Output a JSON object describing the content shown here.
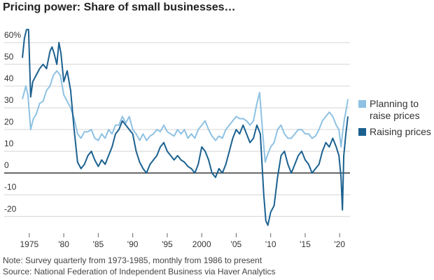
{
  "chart_data": {
    "type": "line",
    "title": "Pricing power: Share of small businesses…",
    "notes": [
      "Note: Survey quarterly from 1973-1985, monthly from 1986 to present",
      "Source: National Federation of Independent Business via Haver Analytics"
    ],
    "xlim": [
      1973.8,
      2021.5
    ],
    "xticks": [
      1975,
      {
        "value": 1980,
        "label": "'80"
      },
      {
        "value": 1985,
        "label": "'85"
      },
      {
        "value": 1990,
        "label": "'90"
      },
      {
        "value": 1995,
        "label": "'95"
      },
      2000,
      {
        "value": 2005,
        "label": "'05"
      },
      {
        "value": 2010,
        "label": "'10"
      },
      {
        "value": 2015,
        "label": "'15"
      },
      {
        "value": 2020,
        "label": "'20"
      }
    ],
    "ylim": [
      -27,
      68
    ],
    "yticks": [
      {
        "value": 60,
        "label": "60%"
      },
      50,
      40,
      30,
      20,
      10,
      0,
      -10,
      -20
    ],
    "grid": true,
    "legend": "right",
    "series": [
      {
        "name": "Planning to raise prices",
        "color": "#8ec1e2",
        "x": [
          1974,
          1974.5,
          1974.8,
          1975.2,
          1975.6,
          1976,
          1976.5,
          1977,
          1977.5,
          1978,
          1978.5,
          1979,
          1979.5,
          1980,
          1980.5,
          1981,
          1981.5,
          1982,
          1982.5,
          1983,
          1983.5,
          1984,
          1984.5,
          1985,
          1985.5,
          1986,
          1986.5,
          1987,
          1987.5,
          1988,
          1988.5,
          1989,
          1989.5,
          1990,
          1990.5,
          1991,
          1991.5,
          1992,
          1992.5,
          1993,
          1993.5,
          1994,
          1994.5,
          1995,
          1995.5,
          1996,
          1996.5,
          1997,
          1997.5,
          1998,
          1998.5,
          1999,
          1999.5,
          2000,
          2000.5,
          2001,
          2001.5,
          2002,
          2002.5,
          2003,
          2003.5,
          2004,
          2004.5,
          2005,
          2005.5,
          2006,
          2006.5,
          2007,
          2007.5,
          2008,
          2008.4,
          2008.8,
          2009.2,
          2009.5,
          2010,
          2010.5,
          2011,
          2011.5,
          2012,
          2012.5,
          2013,
          2013.5,
          2014,
          2014.5,
          2015,
          2015.5,
          2016,
          2016.5,
          2017,
          2017.5,
          2018,
          2018.5,
          2019,
          2019.5,
          2019.9,
          2020.2,
          2020.4,
          2020.7,
          2021,
          2021.2
        ],
        "values": [
          34,
          40,
          36,
          20,
          25,
          27,
          32,
          33,
          38,
          40,
          45,
          47,
          45,
          36,
          33,
          30,
          25,
          18,
          16,
          19,
          19,
          20,
          16,
          15,
          18,
          16,
          20,
          18,
          22,
          22,
          26,
          23,
          26,
          20,
          18,
          15,
          18,
          15,
          17,
          18,
          20,
          19,
          22,
          19,
          18,
          17,
          20,
          18,
          20,
          16,
          18,
          16,
          20,
          22,
          24,
          20,
          17,
          15,
          17,
          16,
          20,
          22,
          24,
          26,
          25,
          25,
          24,
          22,
          24,
          32,
          37,
          20,
          5,
          8,
          12,
          14,
          20,
          22,
          18,
          16,
          16,
          18,
          20,
          20,
          18,
          18,
          16,
          17,
          20,
          24,
          26,
          28,
          26,
          22,
          20,
          12,
          18,
          25,
          30,
          34
        ]
      },
      {
        "name": "Raising prices",
        "color": "#1b6190",
        "x": [
          1974,
          1974.3,
          1974.6,
          1974.9,
          1975.2,
          1975.5,
          1976,
          1976.5,
          1977,
          1977.5,
          1978,
          1978.3,
          1978.6,
          1979,
          1979.3,
          1979.6,
          1980,
          1980.5,
          1981,
          1981.5,
          1982,
          1982.5,
          1983,
          1983.5,
          1984,
          1984.5,
          1985,
          1985.5,
          1986,
          1986.5,
          1987,
          1987.5,
          1988,
          1988.5,
          1989,
          1989.5,
          1990,
          1990.5,
          1991,
          1991.5,
          1992,
          1992.5,
          1993,
          1993.5,
          1994,
          1994.5,
          1995,
          1995.5,
          1996,
          1996.5,
          1997,
          1997.5,
          1998,
          1998.5,
          1999,
          1999.5,
          2000,
          2000.5,
          2001,
          2001.5,
          2002,
          2002.5,
          2003,
          2003.5,
          2004,
          2004.5,
          2005,
          2005.5,
          2006,
          2006.5,
          2007,
          2007.5,
          2008,
          2008.5,
          2009,
          2009.3,
          2009.6,
          2010,
          2010.5,
          2011,
          2011.5,
          2012,
          2012.5,
          2013,
          2013.5,
          2014,
          2014.5,
          2015,
          2015.5,
          2016,
          2016.5,
          2017,
          2017.5,
          2018,
          2018.5,
          2019,
          2019.5,
          2019.9,
          2020.2,
          2020.4,
          2020.6,
          2020.9,
          2021.2
        ],
        "values": [
          53,
          62,
          66,
          66,
          35,
          42,
          45,
          48,
          50,
          48,
          56,
          58,
          55,
          50,
          60,
          55,
          42,
          47,
          38,
          20,
          5,
          2,
          4,
          8,
          10,
          6,
          3,
          6,
          4,
          8,
          12,
          18,
          20,
          24,
          22,
          20,
          18,
          10,
          5,
          2,
          0,
          4,
          6,
          8,
          12,
          14,
          10,
          8,
          6,
          8,
          6,
          5,
          3,
          2,
          0,
          4,
          12,
          10,
          6,
          0,
          -2,
          2,
          0,
          4,
          10,
          16,
          20,
          18,
          22,
          18,
          14,
          16,
          22,
          18,
          -10,
          -22,
          -24,
          -18,
          -15,
          -2,
          8,
          10,
          4,
          0,
          4,
          8,
          10,
          6,
          4,
          0,
          2,
          4,
          10,
          14,
          12,
          16,
          12,
          8,
          -2,
          -17,
          8,
          18,
          26
        ]
      }
    ]
  }
}
